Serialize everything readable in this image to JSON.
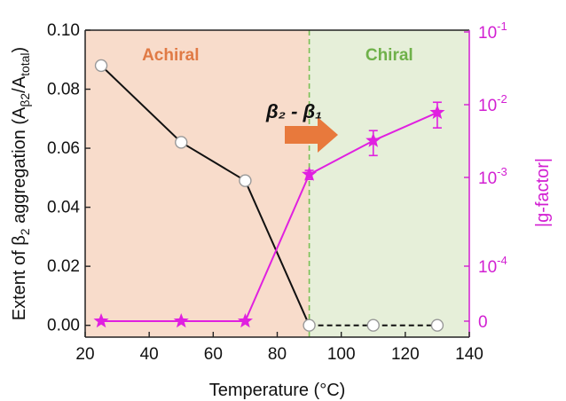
{
  "chart_data": {
    "type": "line",
    "xlabel": "Temperature (°C)",
    "ylabel_main": "Extent of β",
    "ylabel_sub": "2",
    "ylabel_tail": " aggregation (A",
    "ylabel_sub2": "β2",
    "ylabel_slash": "/A",
    "ylabel_sub3": "total",
    "ylabel_close": ")",
    "y2label": "|g-factor|",
    "xlim": [
      20,
      140
    ],
    "ylim": [
      -0.004,
      0.1
    ],
    "x_ticks": [
      20,
      40,
      60,
      80,
      100,
      120,
      140
    ],
    "y_ticks": [
      0.0,
      0.02,
      0.04,
      0.06,
      0.08,
      0.1
    ],
    "y_tick_labels": [
      "0.00",
      "0.02",
      "0.04",
      "0.06",
      "0.08",
      "0.10"
    ],
    "y2_ticks": [
      {
        "base": "0",
        "exp": ""
      },
      {
        "base": "10",
        "exp": "-4"
      },
      {
        "base": "10",
        "exp": "-3"
      },
      {
        "base": "10",
        "exp": "-2"
      },
      {
        "base": "10",
        "exp": "-1"
      }
    ],
    "regions": [
      {
        "label": "Achiral",
        "x_range": [
          20,
          90
        ],
        "color": "#f8dccb",
        "text_color": "#e07a45"
      },
      {
        "label": "Chiral",
        "x_range": [
          90,
          140
        ],
        "color": "#e6efd9",
        "text_color": "#6fb14a"
      }
    ],
    "transition_x": 90,
    "transition_label": "β₂ - β₁",
    "arrow_color": "#e8793c",
    "series": [
      {
        "axis": "left",
        "color": "#111111",
        "marker": "circle",
        "segment_styles": [
          "solid",
          "solid",
          "solid",
          "dashed",
          "dashed",
          "dashed"
        ],
        "x": [
          25,
          50,
          70,
          90,
          110,
          130
        ],
        "y": [
          0.088,
          0.062,
          0.049,
          0.0,
          0.0,
          0.0
        ]
      },
      {
        "axis": "right",
        "color": "#e020e0",
        "marker": "star",
        "x": [
          25,
          50,
          70,
          90,
          110,
          130
        ],
        "y": [
          0,
          0,
          0,
          0.0011,
          0.0032,
          0.0078
        ],
        "error": [
          0,
          0,
          0,
          0.00015,
          0.0012,
          0.003
        ]
      }
    ]
  }
}
